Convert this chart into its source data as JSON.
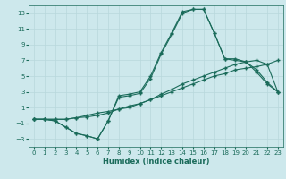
{
  "xlabel": "Humidex (Indice chaleur)",
  "ylabel": "",
  "bg_color": "#cde8ec",
  "grid_color": "#b8d8dc",
  "line_color": "#1a6b5a",
  "xlim": [
    -0.5,
    23.5
  ],
  "ylim": [
    -4,
    14
  ],
  "xticks": [
    0,
    1,
    2,
    3,
    4,
    5,
    6,
    7,
    8,
    9,
    10,
    11,
    12,
    13,
    14,
    15,
    16,
    17,
    18,
    19,
    20,
    21,
    22,
    23
  ],
  "yticks": [
    -3,
    -1,
    1,
    3,
    5,
    7,
    9,
    11,
    13
  ],
  "line1_x": [
    0,
    1,
    2,
    3,
    4,
    5,
    6,
    7,
    8,
    9,
    10,
    11,
    12,
    13,
    14,
    15,
    16,
    17,
    18,
    19,
    20,
    21,
    22,
    23
  ],
  "line1_y": [
    -0.5,
    -0.5,
    -0.7,
    -1.5,
    -2.3,
    -2.6,
    -3.0,
    -0.7,
    2.3,
    2.5,
    2.8,
    4.7,
    7.8,
    10.3,
    13.0,
    13.5,
    13.5,
    10.5,
    7.2,
    7.2,
    6.8,
    5.8,
    4.2,
    3.0
  ],
  "line2_x": [
    0,
    1,
    2,
    3,
    4,
    5,
    6,
    7,
    8,
    9,
    10,
    11,
    12,
    13,
    14,
    15,
    16,
    17,
    18,
    19,
    20,
    21,
    22,
    23
  ],
  "line2_y": [
    -0.5,
    -0.5,
    -0.7,
    -1.5,
    -2.3,
    -2.6,
    -3.0,
    -0.7,
    2.5,
    2.7,
    3.0,
    5.0,
    8.0,
    10.5,
    13.2,
    13.5,
    13.5,
    10.5,
    7.2,
    7.0,
    6.8,
    5.5,
    4.0,
    3.0
  ],
  "line3_x": [
    0,
    1,
    2,
    3,
    4,
    5,
    6,
    7,
    8,
    9,
    10,
    11,
    12,
    13,
    14,
    15,
    16,
    17,
    18,
    19,
    20,
    21,
    22,
    23
  ],
  "line3_y": [
    -0.5,
    -0.5,
    -0.5,
    -0.5,
    -0.3,
    0.0,
    0.3,
    0.5,
    0.8,
    1.2,
    1.5,
    2.0,
    2.5,
    3.0,
    3.5,
    4.0,
    4.5,
    5.0,
    5.3,
    5.8,
    6.0,
    6.2,
    6.5,
    7.0
  ],
  "line4_x": [
    0,
    1,
    2,
    3,
    4,
    5,
    6,
    7,
    8,
    9,
    10,
    11,
    12,
    13,
    14,
    15,
    16,
    17,
    18,
    19,
    20,
    21,
    22,
    23
  ],
  "line4_y": [
    -0.5,
    -0.5,
    -0.5,
    -0.5,
    -0.3,
    -0.2,
    0.0,
    0.3,
    0.8,
    1.0,
    1.5,
    2.0,
    2.7,
    3.3,
    4.0,
    4.5,
    5.0,
    5.5,
    6.0,
    6.5,
    6.8,
    7.0,
    6.5,
    3.0
  ],
  "xlabel_fontsize": 6,
  "tick_fontsize": 5,
  "lw": 0.8,
  "ms": 2.5
}
